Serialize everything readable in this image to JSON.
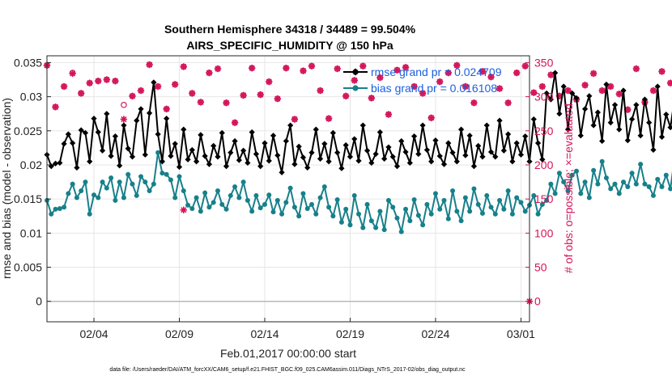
{
  "chart_data": {
    "type": "line",
    "title": "Southern Hemisphere 34318 / 34489 = 99.504%",
    "subtitle": "AIRS_SPECIFIC_HUMIDITY @ 150 hPa",
    "xlabel": "Feb.01,2017 00:00:00 start",
    "ylabel": "rmse and bias (model - observation)",
    "y2label": "# of obs: o=possible; ×=evaluated",
    "x_tick_labels": [
      "02/04",
      "02/09",
      "02/14",
      "02/19",
      "02/24",
      "03/01"
    ],
    "x_tick_days": [
      3,
      8,
      13,
      18,
      23,
      28
    ],
    "xlim": [
      0.25,
      28.5
    ],
    "ylim": [
      -0.003,
      0.036
    ],
    "y_ticks": [
      "0",
      "0.005",
      "0.01",
      "0.015",
      "0.02",
      "0.025",
      "0.03",
      "0.035"
    ],
    "y2lim": [
      -30,
      360
    ],
    "y2_ticks": [
      "0",
      "50",
      "100",
      "150",
      "200",
      "250",
      "300",
      "350"
    ],
    "series": [
      {
        "name": "rmse",
        "legend": "rmse grand pr = 0.024709",
        "color": "#000000",
        "axis": "left",
        "start_day": 0.25,
        "step_days": 0.25,
        "values": [
          0.0215,
          0.0198,
          0.0202,
          0.0203,
          0.0231,
          0.0245,
          0.0232,
          0.0196,
          0.0251,
          0.0247,
          0.0205,
          0.0268,
          0.0248,
          0.0221,
          0.0275,
          0.0213,
          0.0242,
          0.0199,
          0.0258,
          0.0224,
          0.0212,
          0.0265,
          0.0282,
          0.0215,
          0.0276,
          0.0321,
          0.0245,
          0.0205,
          0.0268,
          0.0213,
          0.0231,
          0.0197,
          0.0252,
          0.0208,
          0.0222,
          0.0205,
          0.0244,
          0.0213,
          0.0201,
          0.0228,
          0.0212,
          0.0247,
          0.0198,
          0.0218,
          0.0235,
          0.0207,
          0.0221,
          0.0203,
          0.0248,
          0.0216,
          0.0198,
          0.0232,
          0.0206,
          0.0243,
          0.0214,
          0.0189,
          0.0235,
          0.0258,
          0.0201,
          0.0227,
          0.0211,
          0.0196,
          0.0218,
          0.0252,
          0.0209,
          0.0231,
          0.0205,
          0.0247,
          0.0218,
          0.0195,
          0.0229,
          0.0212,
          0.0238,
          0.0206,
          0.0258,
          0.0221,
          0.0203,
          0.0216,
          0.0248,
          0.0209,
          0.0226,
          0.0212,
          0.0198,
          0.0235,
          0.0219,
          0.0203,
          0.0242,
          0.0216,
          0.0258,
          0.0222,
          0.0205,
          0.0236,
          0.0213,
          0.0201,
          0.0232,
          0.0218,
          0.0205,
          0.0252,
          0.0214,
          0.0243,
          0.0198,
          0.0228,
          0.0212,
          0.0258,
          0.0219,
          0.0212,
          0.0265,
          0.0221,
          0.0245,
          0.0205,
          0.0232,
          0.0215,
          0.0242,
          0.0205,
          0.0267,
          0.0232,
          0.0208,
          0.0305,
          0.0296,
          0.0335,
          0.0275,
          0.0315,
          0.0252,
          0.0305,
          0.0298,
          0.0243,
          0.0282,
          0.0301,
          0.0258,
          0.0277,
          0.0235,
          0.0318,
          0.0262,
          0.0288,
          0.0252,
          0.0309,
          0.0236,
          0.0267,
          0.0288,
          0.0243,
          0.0296,
          0.0262,
          0.0222,
          0.0315,
          0.0241,
          0.0274,
          0.0255,
          0.0298,
          0.0236,
          0.0287,
          0.0263,
          0.0226,
          0.0305,
          0.0248,
          0.0365,
          0.0232,
          0.0268,
          0.0253,
          0.0301,
          0.0295,
          0.0302,
          0.0238,
          0.0255,
          0.0292,
          0.0218,
          0.0251,
          0.0262,
          0.0238,
          0.0289,
          0.0261,
          0.0295,
          0.0252,
          0.0248,
          0.0268,
          0.0321,
          0.0256,
          0.0312,
          0.0291,
          0.0232,
          0.0308,
          0.0255,
          0.0322,
          0.0221
        ]
      },
      {
        "name": "bias",
        "legend": "bias grand pr = 0.016108",
        "color": "#17808a",
        "axis": "left",
        "start_day": 0.25,
        "step_days": 0.25,
        "values": [
          0.0148,
          0.0128,
          0.0135,
          0.0136,
          0.0138,
          0.0158,
          0.0172,
          0.0152,
          0.0162,
          0.0175,
          0.0128,
          0.0156,
          0.0152,
          0.0175,
          0.0166,
          0.0181,
          0.0148,
          0.0175,
          0.0152,
          0.0186,
          0.0172,
          0.0155,
          0.0183,
          0.0175,
          0.0162,
          0.0172,
          0.0218,
          0.0188,
          0.0186,
          0.0178,
          0.0152,
          0.0183,
          0.0162,
          0.0141,
          0.0136,
          0.0152,
          0.0132,
          0.0159,
          0.0138,
          0.0145,
          0.0162,
          0.0142,
          0.0135,
          0.0155,
          0.0168,
          0.0152,
          0.0175,
          0.0148,
          0.0132,
          0.0155,
          0.0137,
          0.0142,
          0.0156,
          0.0131,
          0.0148,
          0.0128,
          0.0145,
          0.0166,
          0.0138,
          0.0125,
          0.0158,
          0.0136,
          0.0142,
          0.0128,
          0.0152,
          0.0168,
          0.0138,
          0.0125,
          0.0149,
          0.0116,
          0.0135,
          0.0112,
          0.0155,
          0.0128,
          0.0108,
          0.0142,
          0.0118,
          0.0108,
          0.0132,
          0.0105,
          0.0148,
          0.0138,
          0.0122,
          0.0102,
          0.0135,
          0.0118,
          0.0149,
          0.0126,
          0.0112,
          0.0142,
          0.0128,
          0.0158,
          0.0135,
          0.0148,
          0.0121,
          0.0162,
          0.0132,
          0.0118,
          0.0152,
          0.0132,
          0.0165,
          0.0142,
          0.0129,
          0.0155,
          0.0138,
          0.0128,
          0.0148,
          0.0135,
          0.0162,
          0.0128,
          0.0152,
          0.0145,
          0.0132,
          0.0141,
          0.0155,
          0.0128,
          0.0142,
          0.0148,
          0.0172,
          0.0158,
          0.0188,
          0.0175,
          0.0162,
          0.0185,
          0.0191,
          0.0158,
          0.0175,
          0.0152,
          0.0192,
          0.0172,
          0.0205,
          0.0181,
          0.0165,
          0.0172,
          0.0158,
          0.0175,
          0.0168,
          0.0188,
          0.0172,
          0.0201,
          0.0172,
          0.0168,
          0.0155,
          0.0179,
          0.0168,
          0.0185,
          0.0165,
          0.0212,
          0.0178,
          0.0161,
          0.0188,
          0.0172,
          0.0201,
          0.0158,
          0.0185,
          0.0254,
          0.0188,
          0.0212,
          0.0178,
          0.0195,
          0.0168,
          0.0218,
          0.0182,
          0.0158,
          0.0152,
          0.0175,
          0.0149,
          0.0165,
          0.0158,
          0.0172,
          0.0195,
          0.0162,
          0.0185,
          0.0167,
          0.0178,
          0.0202,
          0.0171,
          0.0212,
          0.0162,
          0.0175,
          0.0218,
          0.0201,
          0.0212,
          0.0158
        ]
      },
      {
        "name": "possible",
        "legend": "o=possible",
        "color": "#d4145a",
        "axis": "right",
        "marker": "circle",
        "start_day": 0.25,
        "step_days": 0.5,
        "values": [
          346,
          285,
          315,
          335,
          305,
          320,
          323,
          325,
          323,
          288,
          301,
          309,
          347,
          315,
          282,
          318,
          344,
          305,
          292,
          335,
          341,
          291,
          262,
          302,
          342,
          303,
          322,
          297,
          342,
          267,
          338,
          345,
          309,
          268,
          341,
          301,
          324,
          345,
          298,
          328,
          274,
          339,
          343,
          315,
          305,
          269,
          322,
          335,
          346,
          315,
          291,
          337,
          329,
          312,
          291,
          335,
          345,
          306,
          315,
          332,
          301,
          309,
          296,
          317,
          334,
          309,
          315,
          304,
          281,
          341,
          292,
          309,
          337,
          320,
          295,
          327,
          348,
          318,
          312,
          337,
          298,
          347,
          309,
          325,
          289,
          310,
          331,
          297,
          343,
          282,
          305,
          326,
          287,
          340,
          298,
          305,
          347,
          319,
          302,
          335,
          304,
          328,
          340,
          325,
          308,
          296,
          327,
          341,
          294,
          316,
          322,
          307,
          336
        ]
      },
      {
        "name": "evaluated",
        "legend": "×=evaluated",
        "color": "#d4145a",
        "axis": "right",
        "marker": "star",
        "start_day": 0.25,
        "step_days": 0.5,
        "values": [
          346,
          285,
          315,
          334,
          305,
          320,
          323,
          325,
          323,
          267,
          301,
          309,
          347,
          315,
          282,
          318,
          344,
          305,
          292,
          335,
          341,
          291,
          262,
          302,
          342,
          303,
          322,
          297,
          342,
          267,
          338,
          345,
          309,
          268,
          341,
          301,
          324,
          345,
          298,
          328,
          274,
          339,
          343,
          315,
          305,
          269,
          322,
          335,
          346,
          315,
          291,
          337,
          329,
          312,
          291,
          335,
          345,
          306,
          315,
          332,
          301,
          309,
          296,
          317,
          334,
          309,
          315,
          304,
          281,
          341,
          292,
          309,
          337,
          320,
          295,
          327,
          348,
          318,
          312,
          337,
          298,
          347,
          309,
          325,
          289,
          310,
          331,
          297,
          343,
          282,
          305,
          326,
          287,
          340,
          298,
          305,
          347,
          319,
          302,
          335,
          304,
          328,
          340,
          325,
          308,
          296,
          327,
          341,
          294,
          316,
          322,
          307,
          336
        ]
      }
    ],
    "isolated_points": [
      {
        "series": "evaluated",
        "day": 8.25,
        "value": 134
      },
      {
        "series": "evaluated",
        "day": 28.5,
        "value": 0
      }
    ],
    "footer": "data file: /Users/raeder/DAI/ATM_forcXX/CAM6_setup/f.e21.FHIST_BGC.f09_025.CAM6assim.011/Diags_NTrS_2017-02/obs_diag_output.nc"
  }
}
